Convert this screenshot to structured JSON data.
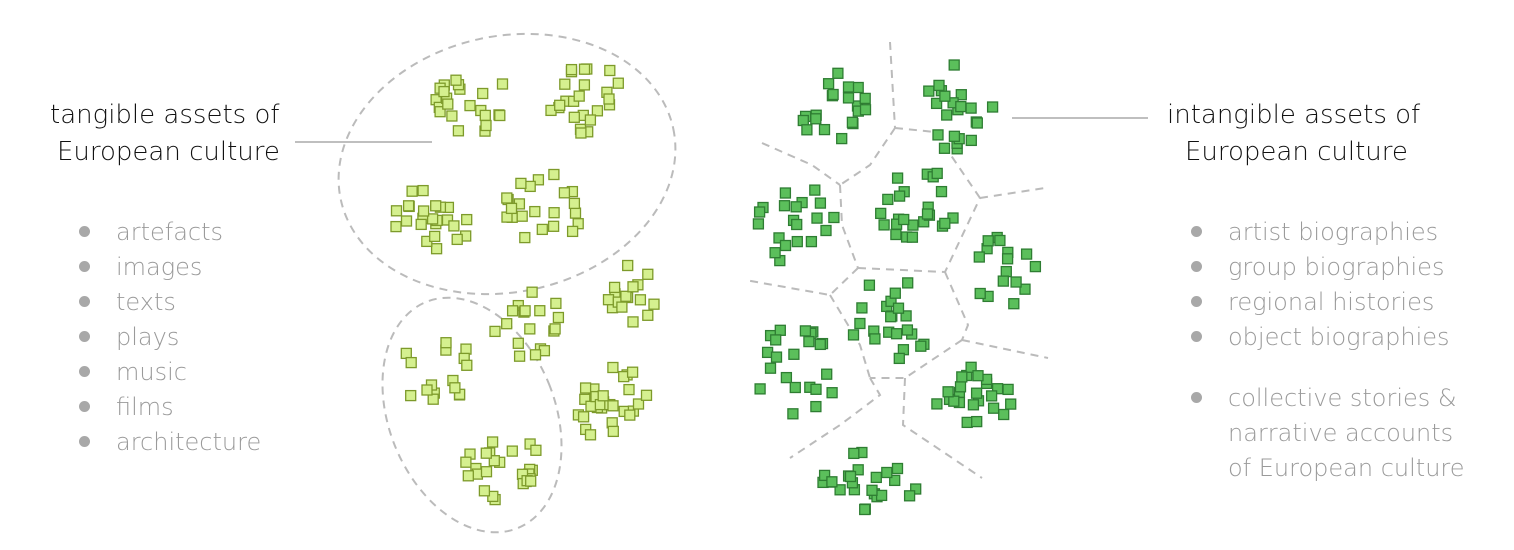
{
  "left": {
    "heading_line1": "tangible assets of",
    "heading_line2": "European culture",
    "items": [
      "artefacts",
      "images",
      "texts",
      "plays",
      "music",
      "films",
      "architecture"
    ]
  },
  "right": {
    "heading_line1": "intangible assets of",
    "heading_line2": "European culture",
    "items": [
      "artist biographies",
      "group biographies",
      "regional histories",
      "object biographies"
    ],
    "extra_line1": "collective stories &",
    "extra_line2": "narrative accounts",
    "extra_line3": "of European culture"
  },
  "colors": {
    "tangible_fill": "#d5f08f",
    "intangible_fill": "#5bbf5b",
    "text_primary": "#111111",
    "text_secondary": "#9a9a9a"
  }
}
